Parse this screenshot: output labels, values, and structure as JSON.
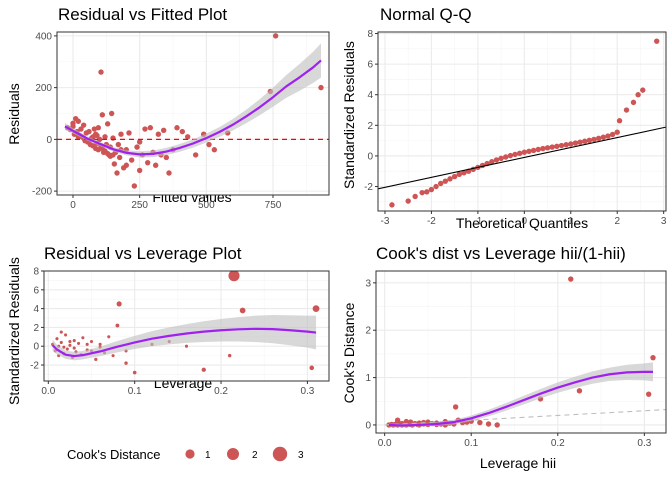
{
  "colors": {
    "points": "#cd5555",
    "smooth": "#a020f0",
    "ribbon": "#bebebe",
    "hline": "#ff0000",
    "qqline": "#000000",
    "refline": "#bebebe",
    "grid_major": "#ebebeb",
    "grid_minor": "#f5f5f5",
    "frame": "#333333"
  },
  "legend": {
    "title": "Cook's Distance",
    "entries": [
      {
        "label": "1",
        "value": 1
      },
      {
        "label": "2",
        "value": 2
      },
      {
        "label": "3",
        "value": 3
      }
    ]
  },
  "chart_data": [
    {
      "id": "resid-fitted",
      "type": "scatter",
      "title": "Residual vs Fitted Plot",
      "xlabel": "Fitted values",
      "ylabel": "Residuals",
      "xlim": [
        -60,
        960
      ],
      "ylim": [
        -215,
        415
      ],
      "xticks": [
        0,
        250,
        500,
        750
      ],
      "yticks": [
        -200,
        0,
        200,
        400
      ],
      "grid": true,
      "hline": {
        "y": 0,
        "style": "dashed"
      },
      "smooth": {
        "x": [
          -30,
          0,
          50,
          100,
          150,
          200,
          250,
          300,
          350,
          400,
          450,
          500,
          550,
          600,
          650,
          700,
          750,
          800,
          850,
          900,
          930
        ],
        "y": [
          50,
          33,
          5,
          -17,
          -38,
          -52,
          -58,
          -56,
          -47,
          -33,
          -16,
          5,
          29,
          57,
          89,
          124,
          163,
          205,
          240,
          278,
          305
        ],
        "band": [
          14,
          10,
          8,
          8,
          9,
          10,
          12,
          13,
          14,
          15,
          16,
          17,
          19,
          22,
          26,
          31,
          37,
          44,
          52,
          60,
          66
        ]
      },
      "points": [
        [
          -20,
          45
        ],
        [
          -10,
          38
        ],
        [
          0,
          62
        ],
        [
          5,
          20
        ],
        [
          10,
          80
        ],
        [
          15,
          30
        ],
        [
          20,
          70
        ],
        [
          25,
          15
        ],
        [
          30,
          40
        ],
        [
          35,
          10
        ],
        [
          40,
          55
        ],
        [
          45,
          -5
        ],
        [
          50,
          25
        ],
        [
          55,
          -10
        ],
        [
          60,
          30
        ],
        [
          65,
          -20
        ],
        [
          70,
          5
        ],
        [
          75,
          -25
        ],
        [
          80,
          40
        ],
        [
          85,
          -35
        ],
        [
          90,
          15
        ],
        [
          95,
          -40
        ],
        [
          100,
          0
        ],
        [
          105,
          260
        ],
        [
          110,
          95
        ],
        [
          115,
          -50
        ],
        [
          120,
          10
        ],
        [
          125,
          -20
        ],
        [
          130,
          60
        ],
        [
          135,
          -60
        ],
        [
          140,
          -30
        ],
        [
          145,
          100
        ],
        [
          150,
          5
        ],
        [
          155,
          -95
        ],
        [
          160,
          -50
        ],
        [
          165,
          -130
        ],
        [
          170,
          -20
        ],
        [
          175,
          -70
        ],
        [
          180,
          20
        ],
        [
          190,
          -110
        ],
        [
          200,
          -40
        ],
        [
          210,
          25
        ],
        [
          220,
          -80
        ],
        [
          230,
          -180
        ],
        [
          240,
          -30
        ],
        [
          250,
          -120
        ],
        [
          260,
          -60
        ],
        [
          270,
          40
        ],
        [
          280,
          -90
        ],
        [
          290,
          45
        ],
        [
          300,
          -50
        ],
        [
          310,
          -100
        ],
        [
          320,
          20
        ],
        [
          330,
          -60
        ],
        [
          340,
          35
        ],
        [
          350,
          -70
        ],
        [
          360,
          -130
        ],
        [
          375,
          -40
        ],
        [
          390,
          45
        ],
        [
          410,
          30
        ],
        [
          430,
          10
        ],
        [
          460,
          -60
        ],
        [
          490,
          20
        ],
        [
          510,
          -20
        ],
        [
          530,
          -40
        ],
        [
          580,
          25
        ],
        [
          740,
          185
        ],
        [
          760,
          400
        ],
        [
          930,
          200
        ],
        [
          60,
          -5
        ],
        [
          75,
          10
        ],
        [
          90,
          -15
        ],
        [
          110,
          -35
        ],
        [
          120,
          -45
        ],
        [
          130,
          -55
        ],
        [
          140,
          -65
        ],
        [
          105,
          -25
        ],
        [
          85,
          20
        ],
        [
          40,
          5
        ],
        [
          20,
          10
        ],
        [
          0,
          50
        ],
        [
          95,
          45
        ],
        [
          180,
          -40
        ],
        [
          200,
          -100
        ],
        [
          150,
          -60
        ],
        [
          250,
          -10
        ]
      ]
    },
    {
      "id": "normal-qq",
      "type": "scatter",
      "title": "Normal Q-Q",
      "xlabel": "Theoretical Quantiles",
      "ylabel": "Standardized Residuals",
      "xlim": [
        -3.15,
        3.05
      ],
      "ylim": [
        -3.6,
        8.1
      ],
      "xticks": [
        -3,
        -2,
        -1,
        0,
        1,
        2,
        3
      ],
      "yticks": [
        -2,
        0,
        2,
        4,
        6,
        8
      ],
      "grid": true,
      "qqline": {
        "slope": 0.65,
        "intercept": -0.1
      },
      "points": [
        [
          -2.85,
          -3.2
        ],
        [
          -2.5,
          -2.95
        ],
        [
          -2.35,
          -2.65
        ],
        [
          -2.2,
          -2.4
        ],
        [
          -2.1,
          -2.35
        ],
        [
          -2.0,
          -2.2
        ],
        [
          -1.9,
          -2.0
        ],
        [
          -1.8,
          -1.8
        ],
        [
          -1.7,
          -1.65
        ],
        [
          -1.6,
          -1.5
        ],
        [
          -1.5,
          -1.35
        ],
        [
          -1.4,
          -1.2
        ],
        [
          -1.3,
          -1.1
        ],
        [
          -1.2,
          -1.0
        ],
        [
          -1.1,
          -0.88
        ],
        [
          -1.0,
          -0.75
        ],
        [
          -0.9,
          -0.62
        ],
        [
          -0.8,
          -0.5
        ],
        [
          -0.7,
          -0.38
        ],
        [
          -0.6,
          -0.26
        ],
        [
          -0.5,
          -0.16
        ],
        [
          -0.4,
          -0.07
        ],
        [
          -0.3,
          0.02
        ],
        [
          -0.2,
          0.1
        ],
        [
          -0.1,
          0.17
        ],
        [
          0.0,
          0.24
        ],
        [
          0.1,
          0.3
        ],
        [
          0.2,
          0.36
        ],
        [
          0.3,
          0.42
        ],
        [
          0.4,
          0.48
        ],
        [
          0.5,
          0.53
        ],
        [
          0.6,
          0.58
        ],
        [
          0.7,
          0.63
        ],
        [
          0.8,
          0.68
        ],
        [
          0.9,
          0.73
        ],
        [
          1.0,
          0.78
        ],
        [
          1.1,
          0.84
        ],
        [
          1.2,
          0.9
        ],
        [
          1.3,
          0.96
        ],
        [
          1.4,
          1.02
        ],
        [
          1.5,
          1.08
        ],
        [
          1.6,
          1.15
        ],
        [
          1.7,
          1.22
        ],
        [
          1.8,
          1.3
        ],
        [
          1.9,
          1.4
        ],
        [
          2.0,
          1.55
        ],
        [
          2.05,
          2.3
        ],
        [
          2.2,
          3.0
        ],
        [
          2.35,
          3.5
        ],
        [
          2.45,
          4.0
        ],
        [
          2.55,
          4.3
        ],
        [
          2.85,
          7.5
        ]
      ]
    },
    {
      "id": "resid-leverage",
      "type": "scatter",
      "title": "Residual vs Leverage Plot",
      "xlabel": "Leverage",
      "ylabel": "Standardized Residuals",
      "xlim": [
        -0.005,
        0.325
      ],
      "ylim": [
        -3.7,
        8.0
      ],
      "xticks": [
        0.0,
        0.1,
        0.2,
        0.3
      ],
      "yticks": [
        -2,
        0,
        2,
        4,
        6,
        8
      ],
      "grid": true,
      "size_by": "Cook's Distance",
      "smooth": {
        "x": [
          0.005,
          0.01,
          0.02,
          0.03,
          0.04,
          0.06,
          0.08,
          0.1,
          0.12,
          0.14,
          0.16,
          0.18,
          0.2,
          0.22,
          0.24,
          0.26,
          0.28,
          0.3,
          0.31
        ],
        "y": [
          0.1,
          -0.35,
          -0.9,
          -1.05,
          -0.95,
          -0.55,
          -0.05,
          0.4,
          0.8,
          1.1,
          1.35,
          1.55,
          1.7,
          1.8,
          1.85,
          1.82,
          1.7,
          1.55,
          1.45
        ],
        "band": [
          0.6,
          0.5,
          0.45,
          0.45,
          0.45,
          0.5,
          0.6,
          0.7,
          0.8,
          0.9,
          1.0,
          1.1,
          1.2,
          1.3,
          1.4,
          1.5,
          1.6,
          1.7,
          1.8
        ]
      },
      "points": [
        [
          0.005,
          0.2,
          0.1
        ],
        [
          0.008,
          -0.5,
          0.1
        ],
        [
          0.01,
          0.8,
          0.1
        ],
        [
          0.012,
          -1.0,
          0.1
        ],
        [
          0.015,
          0.4,
          0.1
        ],
        [
          0.018,
          -0.8,
          0.1
        ],
        [
          0.02,
          1.2,
          0.1
        ],
        [
          0.022,
          -0.3,
          0.1
        ],
        [
          0.025,
          0.1,
          0.1
        ],
        [
          0.028,
          -1.2,
          0.1
        ],
        [
          0.03,
          0.6,
          0.1
        ],
        [
          0.032,
          -0.6,
          0.1
        ],
        [
          0.035,
          0.3,
          0.1
        ],
        [
          0.038,
          -0.9,
          0.1
        ],
        [
          0.04,
          0.9,
          0.1
        ],
        [
          0.045,
          -0.4,
          0.1
        ],
        [
          0.05,
          0.5,
          0.1
        ],
        [
          0.055,
          -1.4,
          0.15
        ],
        [
          0.06,
          0.2,
          0.1
        ],
        [
          0.065,
          -0.7,
          0.1
        ],
        [
          0.07,
          1.0,
          0.1
        ],
        [
          0.075,
          -1.0,
          0.1
        ],
        [
          0.08,
          2.2,
          0.35
        ],
        [
          0.082,
          4.5,
          0.8
        ],
        [
          0.09,
          -1.8,
          0.2
        ],
        [
          0.1,
          -2.8,
          0.3
        ],
        [
          0.12,
          0.2,
          0.1
        ],
        [
          0.015,
          1.5,
          0.1
        ],
        [
          0.018,
          -0.1,
          0.1
        ],
        [
          0.012,
          0.0,
          0.1
        ],
        [
          0.03,
          -0.2,
          0.1
        ],
        [
          0.045,
          0.2,
          0.1
        ],
        [
          0.06,
          -0.1,
          0.1
        ],
        [
          0.09,
          -0.5,
          0.1
        ],
        [
          0.14,
          0.5,
          0.1
        ],
        [
          0.18,
          -2.5,
          0.5
        ],
        [
          0.215,
          7.5,
          3.2
        ],
        [
          0.225,
          3.8,
          1.0
        ],
        [
          0.21,
          -1.0,
          0.2
        ],
        [
          0.305,
          -2.3,
          0.6
        ],
        [
          0.31,
          4.0,
          1.4
        ],
        [
          0.16,
          0.0,
          0.1
        ],
        [
          0.05,
          -0.5,
          0.1
        ],
        [
          0.025,
          0.5,
          0.1
        ]
      ]
    },
    {
      "id": "cooks-leverage",
      "type": "scatter",
      "title": "Cook's dist vs Leverage hii/(1-hii)",
      "xlabel": "Leverage hii",
      "ylabel": "Cook's Distance",
      "xlim": [
        -0.01,
        0.325
      ],
      "ylim": [
        -0.17,
        3.25
      ],
      "xticks": [
        0.0,
        0.1,
        0.2,
        0.3
      ],
      "yticks": [
        0,
        1,
        2,
        3
      ],
      "grid": true,
      "refline": {
        "slope": 1.0,
        "intercept": 0,
        "style": "dashed"
      },
      "smooth": {
        "x": [
          0.005,
          0.02,
          0.04,
          0.06,
          0.08,
          0.1,
          0.12,
          0.14,
          0.16,
          0.18,
          0.2,
          0.22,
          0.24,
          0.26,
          0.28,
          0.3,
          0.31
        ],
        "y": [
          0.0,
          -0.01,
          0.0,
          0.02,
          0.06,
          0.14,
          0.25,
          0.38,
          0.52,
          0.66,
          0.79,
          0.9,
          1.0,
          1.07,
          1.11,
          1.12,
          1.12
        ],
        "band": [
          0.03,
          0.03,
          0.03,
          0.04,
          0.05,
          0.06,
          0.07,
          0.08,
          0.09,
          0.1,
          0.11,
          0.12,
          0.13,
          0.14,
          0.16,
          0.18,
          0.2
        ]
      },
      "points": [
        [
          0.005,
          0.0
        ],
        [
          0.008,
          0.01
        ],
        [
          0.01,
          0.0
        ],
        [
          0.012,
          0.01
        ],
        [
          0.015,
          0.0
        ],
        [
          0.018,
          0.02
        ],
        [
          0.02,
          0.0
        ],
        [
          0.022,
          0.01
        ],
        [
          0.025,
          0.0
        ],
        [
          0.028,
          0.02
        ],
        [
          0.03,
          0.01
        ],
        [
          0.032,
          0.0
        ],
        [
          0.035,
          0.03
        ],
        [
          0.038,
          0.01
        ],
        [
          0.04,
          0.0
        ],
        [
          0.045,
          0.02
        ],
        [
          0.05,
          0.01
        ],
        [
          0.055,
          0.03
        ],
        [
          0.06,
          0.01
        ],
        [
          0.065,
          0.02
        ],
        [
          0.07,
          0.0
        ],
        [
          0.075,
          0.04
        ],
        [
          0.08,
          0.02
        ],
        [
          0.082,
          0.38
        ],
        [
          0.09,
          0.05
        ],
        [
          0.1,
          0.08
        ],
        [
          0.12,
          0.02
        ],
        [
          0.13,
          0.0
        ],
        [
          0.015,
          0.05
        ],
        [
          0.02,
          0.03
        ],
        [
          0.03,
          0.06
        ],
        [
          0.045,
          0.05
        ],
        [
          0.06,
          0.04
        ],
        [
          0.07,
          0.07
        ],
        [
          0.085,
          0.1
        ],
        [
          0.18,
          0.55
        ],
        [
          0.215,
          3.08
        ],
        [
          0.225,
          0.72
        ],
        [
          0.305,
          0.65
        ],
        [
          0.31,
          1.42
        ],
        [
          0.025,
          0.07
        ],
        [
          0.04,
          0.04
        ],
        [
          0.095,
          0.06
        ],
        [
          0.11,
          0.05
        ],
        [
          0.015,
          0.1
        ],
        [
          0.05,
          0.06
        ]
      ]
    }
  ]
}
